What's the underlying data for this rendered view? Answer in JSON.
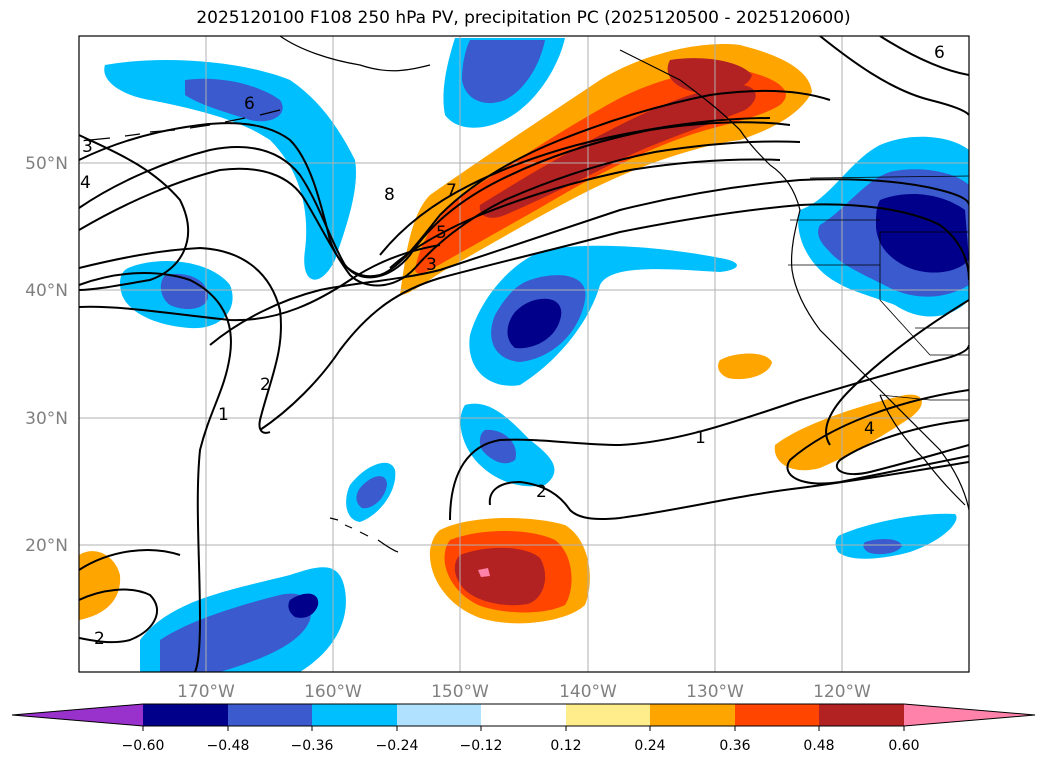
{
  "title": "2025120100 F108 250 hPa PV, precipitation PC (2025120500 - 2025120600)",
  "map": {
    "lat_labels": [
      "50°N",
      "40°N",
      "30°N",
      "20°N"
    ],
    "lon_labels": [
      "170°W",
      "160°W",
      "150°W",
      "140°W",
      "130°W",
      "120°W"
    ],
    "contour_labels": [
      "6",
      "3",
      "4",
      "8",
      "7",
      "5",
      "3",
      "2",
      "1",
      "1",
      "2",
      "2",
      "4",
      "6"
    ]
  },
  "colorbar": {
    "labels": [
      "−0.60",
      "−0.48",
      "−0.36",
      "−0.24",
      "−0.12",
      "0.12",
      "0.24",
      "0.36",
      "0.48",
      "0.60"
    ],
    "colors": [
      "#9932cc",
      "#00008b",
      "#3a5acd",
      "#00bfff",
      "#b0e2ff",
      "#ffffff",
      "#ffec8b",
      "#ffa500",
      "#ff4500",
      "#b22222",
      "#ff82ab"
    ]
  },
  "fill_colors": {
    "neg_strong": "#00008b",
    "neg_mid": "#3a5acd",
    "neg_weak": "#00bfff",
    "pos_weak": "#ffa500",
    "pos_mid": "#ff4500",
    "pos_strong": "#b22222",
    "pos_max": "#ff82ab"
  }
}
